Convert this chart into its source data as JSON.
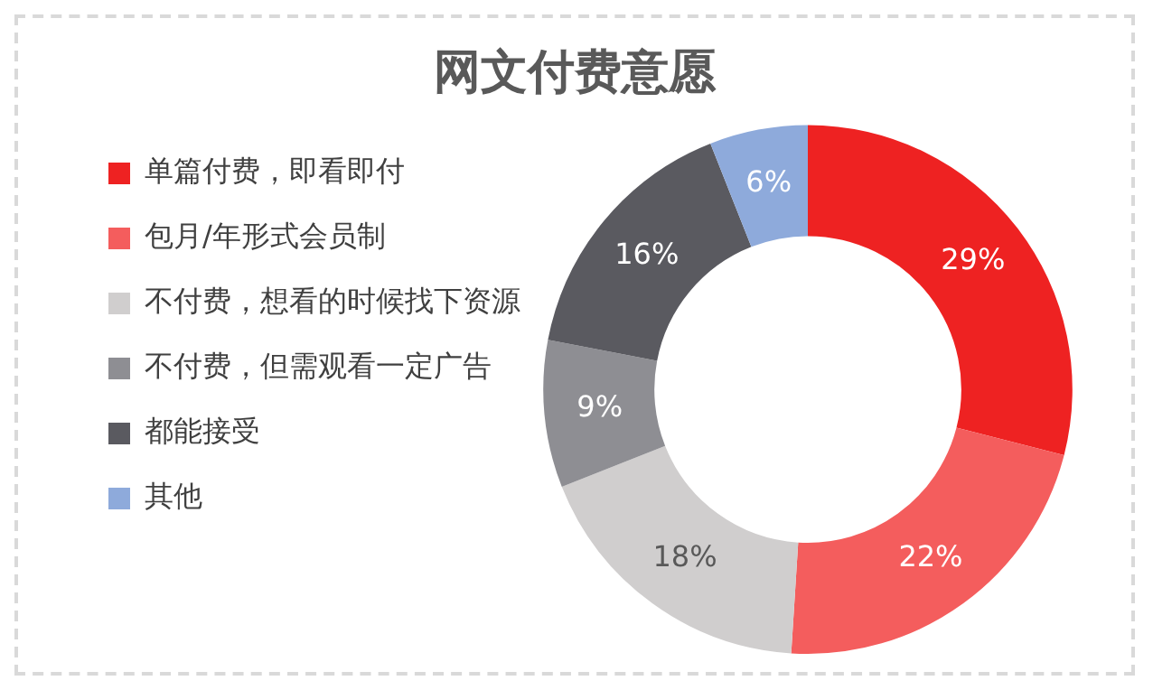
{
  "chart_data": {
    "type": "donut",
    "title": "网文付费意愿",
    "categories": [
      "单篇付费，即看即付",
      "包月/年形式会员制",
      "不付费，想看的时候找下资源",
      "不付费，但需观看一定广告",
      "都能接受",
      "其他"
    ],
    "values": [
      29,
      22,
      18,
      9,
      16,
      6
    ],
    "value_labels": [
      "29%",
      "22%",
      "18%",
      "9%",
      "16%",
      "6%"
    ],
    "colors": [
      "#ee2222",
      "#f45d5d",
      "#d0cece",
      "#8e8e93",
      "#5a5a60",
      "#8eaadb"
    ],
    "legend": "left"
  }
}
